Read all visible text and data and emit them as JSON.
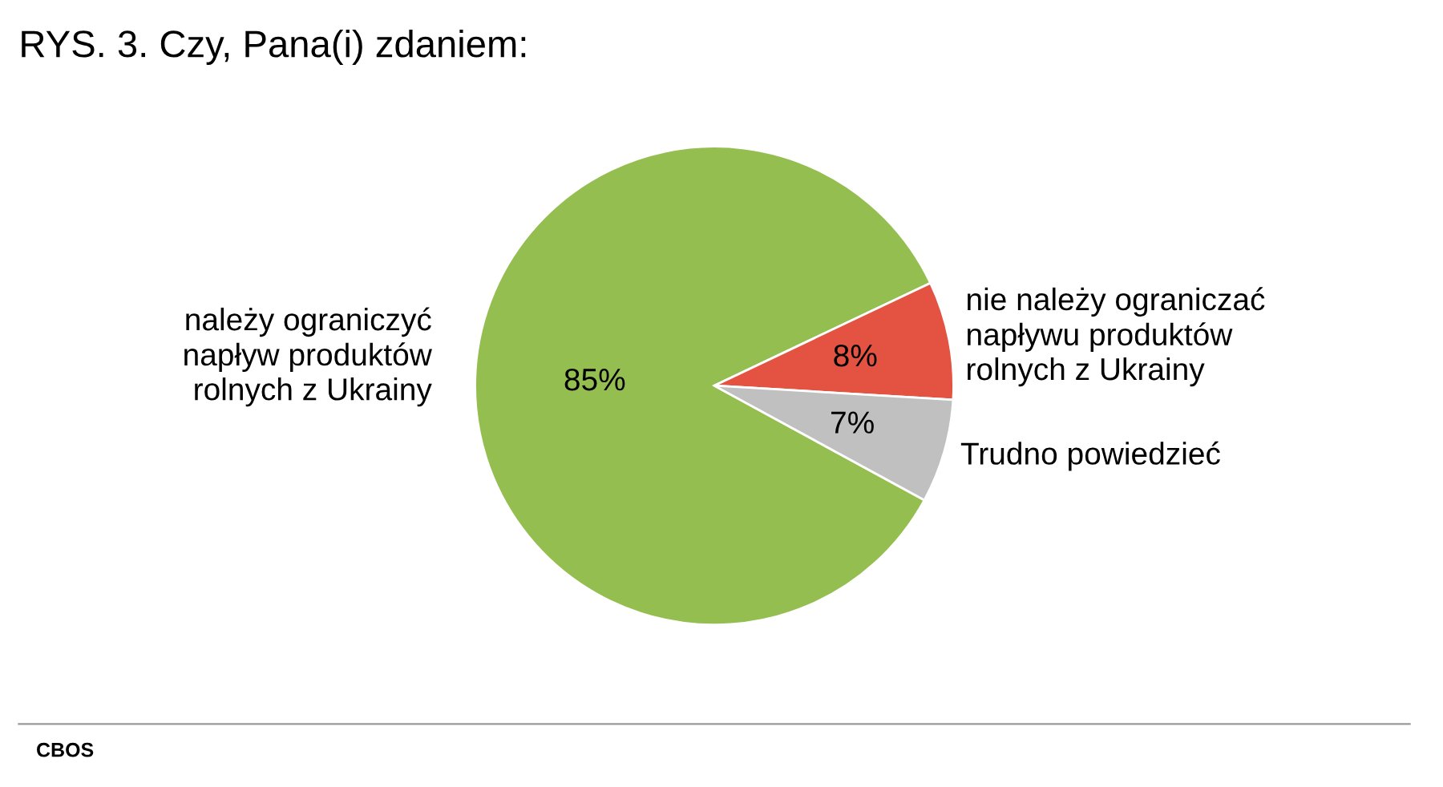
{
  "chart_data": {
    "type": "pie",
    "title": "RYS. 3. Czy, Pana(i) zdaniem:",
    "categories": [
      "należy ograniczyć\nnapływ produktów\nrolnych z Ukrainy",
      "nie należy ograniczać\nnapływu produktów\nrolnych z Ukrainy",
      "Trudno powiedzieć"
    ],
    "values": [
      85,
      8,
      7
    ],
    "colors": [
      "#94be50",
      "#e45242",
      "#c0c0c0"
    ],
    "value_labels": [
      "85%",
      "8%",
      "7%"
    ],
    "annotations": [
      "CBOS"
    ],
    "legend": false
  }
}
